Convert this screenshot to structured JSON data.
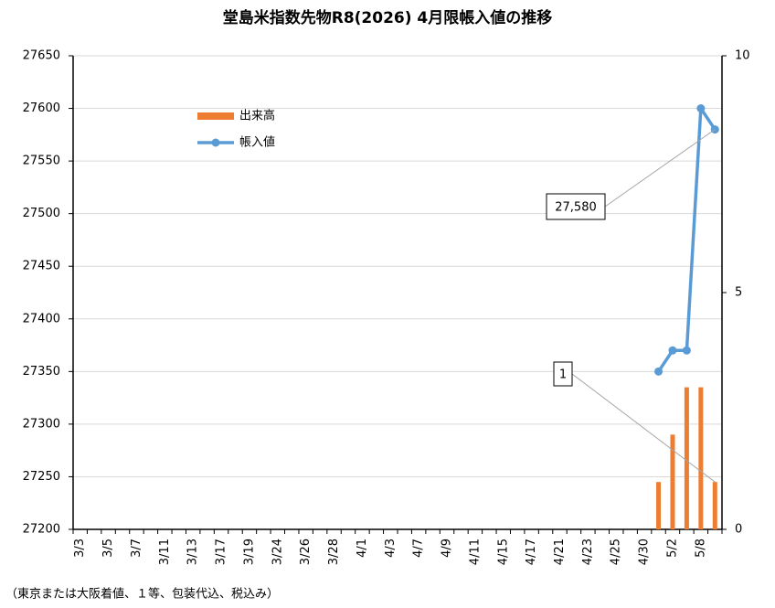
{
  "chart_data": {
    "type": "bar_line",
    "title": "堂島米指数先物R8(2026) 4月限帳入値の推移",
    "footnote": "（東京または大阪着値、１等、包装代込、税込み）",
    "categories": [
      "3/3",
      null,
      "3/5",
      null,
      "3/7",
      null,
      "3/11",
      null,
      "3/13",
      null,
      "3/17",
      null,
      "3/19",
      null,
      "3/24",
      null,
      "3/26",
      null,
      "3/28",
      null,
      "4/1",
      null,
      "4/3",
      null,
      "4/7",
      null,
      "4/9",
      null,
      "4/11",
      null,
      "4/15",
      null,
      "4/17",
      null,
      "4/21",
      null,
      "4/23",
      null,
      "4/25",
      null,
      "4/30",
      null,
      "5/2",
      null,
      "5/8",
      null
    ],
    "series": [
      {
        "name": "出来高",
        "type": "bar",
        "axis": "y2",
        "color": "#ed7d31",
        "values": [
          null,
          null,
          null,
          null,
          null,
          null,
          null,
          null,
          null,
          null,
          null,
          null,
          null,
          null,
          null,
          null,
          null,
          null,
          null,
          null,
          null,
          null,
          null,
          null,
          null,
          null,
          null,
          null,
          null,
          null,
          null,
          null,
          null,
          null,
          null,
          null,
          null,
          null,
          null,
          null,
          null,
          1,
          2,
          3,
          3,
          1
        ]
      },
      {
        "name": "帳入値",
        "type": "line",
        "axis": "y",
        "color": "#5b9bd5",
        "values": [
          null,
          null,
          null,
          null,
          null,
          null,
          null,
          null,
          null,
          null,
          null,
          null,
          null,
          null,
          null,
          null,
          null,
          null,
          null,
          null,
          null,
          null,
          null,
          null,
          null,
          null,
          null,
          null,
          null,
          null,
          null,
          null,
          null,
          null,
          null,
          null,
          null,
          null,
          null,
          null,
          null,
          27350,
          27370,
          27370,
          27600,
          27580
        ],
        "value_labels": [
          null,
          null,
          null,
          null,
          null,
          null,
          null,
          null,
          null,
          null,
          null,
          null,
          null,
          null,
          null,
          null,
          null,
          null,
          null,
          null,
          null,
          null,
          null,
          null,
          null,
          null,
          null,
          null,
          null,
          null,
          null,
          null,
          null,
          null,
          null,
          null,
          null,
          null,
          null,
          null,
          null,
          null,
          null,
          null,
          null,
          "27,580"
        ]
      }
    ],
    "ylim": [
      27200,
      27650
    ],
    "yticks": [
      27200,
      27250,
      27300,
      27350,
      27400,
      27450,
      27500,
      27550,
      27600,
      27650
    ],
    "y2lim": [
      0,
      10
    ],
    "y2ticks": [
      0,
      5,
      10
    ],
    "grid": true,
    "legend": "upper left"
  }
}
